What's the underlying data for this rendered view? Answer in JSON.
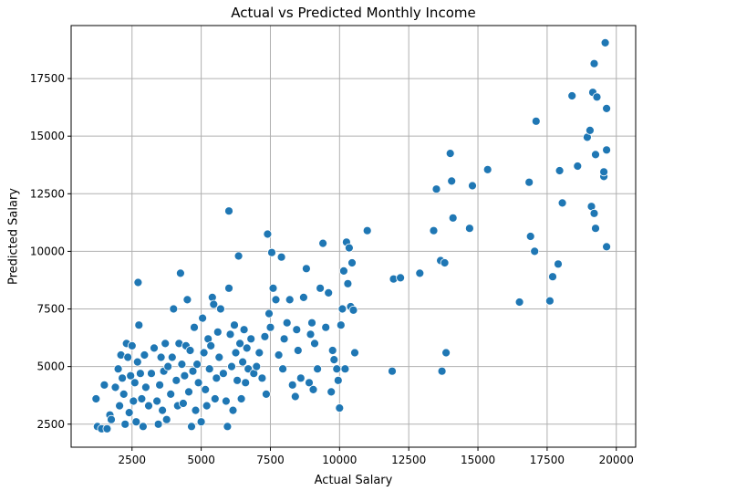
{
  "chart_data": {
    "type": "scatter",
    "title": "Actual vs Predicted Monthly Income",
    "xlabel": "Actual Salary",
    "ylabel": "Predicted Salary",
    "xlim": [
      300,
      20700
    ],
    "ylim": [
      1500,
      19800
    ],
    "xticks": [
      2500,
      5000,
      7500,
      10000,
      12500,
      15000,
      17500,
      20000
    ],
    "yticks": [
      2500,
      5000,
      7500,
      10000,
      12500,
      15000,
      17500
    ],
    "xtick_labels": [
      "2500",
      "5000",
      "7500",
      "10000",
      "12500",
      "15000",
      "17500",
      "20000"
    ],
    "ytick_labels": [
      "2500",
      "5000",
      "7500",
      "10000",
      "12500",
      "15000",
      "17500"
    ],
    "grid": true,
    "marker_color": "#1f77b4",
    "points": [
      [
        1200,
        3600
      ],
      [
        1250,
        2400
      ],
      [
        1400,
        2300
      ],
      [
        1500,
        4200
      ],
      [
        1600,
        2300
      ],
      [
        1700,
        2900
      ],
      [
        1750,
        2700
      ],
      [
        1900,
        4100
      ],
      [
        2000,
        4900
      ],
      [
        2050,
        3300
      ],
      [
        2100,
        5500
      ],
      [
        2150,
        4500
      ],
      [
        2200,
        3800
      ],
      [
        2250,
        2500
      ],
      [
        2300,
        6000
      ],
      [
        2350,
        5400
      ],
      [
        2400,
        3000
      ],
      [
        2450,
        4600
      ],
      [
        2500,
        5900
      ],
      [
        2550,
        3500
      ],
      [
        2600,
        4300
      ],
      [
        2650,
        2600
      ],
      [
        2700,
        5200
      ],
      [
        2720,
        8650
      ],
      [
        2750,
        6800
      ],
      [
        2800,
        4700
      ],
      [
        2850,
        3600
      ],
      [
        2900,
        2400
      ],
      [
        2950,
        5500
      ],
      [
        3000,
        4100
      ],
      [
        3100,
        3300
      ],
      [
        3200,
        4700
      ],
      [
        3300,
        5800
      ],
      [
        3400,
        3500
      ],
      [
        3450,
        2500
      ],
      [
        3500,
        4200
      ],
      [
        3550,
        5400
      ],
      [
        3600,
        3100
      ],
      [
        3650,
        4800
      ],
      [
        3700,
        6000
      ],
      [
        3750,
        2700
      ],
      [
        3800,
        5000
      ],
      [
        3900,
        3800
      ],
      [
        3950,
        5400
      ],
      [
        4000,
        7500
      ],
      [
        4100,
        4400
      ],
      [
        4150,
        3300
      ],
      [
        4200,
        6000
      ],
      [
        4250,
        9050
      ],
      [
        4300,
        5100
      ],
      [
        4350,
        3400
      ],
      [
        4400,
        4600
      ],
      [
        4450,
        5900
      ],
      [
        4500,
        7900
      ],
      [
        4550,
        3900
      ],
      [
        4600,
        5700
      ],
      [
        4650,
        2400
      ],
      [
        4700,
        4800
      ],
      [
        4750,
        6700
      ],
      [
        4800,
        3100
      ],
      [
        4850,
        5100
      ],
      [
        4900,
        4300
      ],
      [
        5000,
        2600
      ],
      [
        5050,
        7100
      ],
      [
        5100,
        5600
      ],
      [
        5150,
        4000
      ],
      [
        5200,
        3300
      ],
      [
        5250,
        6200
      ],
      [
        5300,
        4900
      ],
      [
        5350,
        5900
      ],
      [
        5400,
        8000
      ],
      [
        5450,
        7700
      ],
      [
        5500,
        3600
      ],
      [
        5550,
        4500
      ],
      [
        5600,
        6500
      ],
      [
        5650,
        5400
      ],
      [
        5700,
        7500
      ],
      [
        5800,
        4700
      ],
      [
        5900,
        3500
      ],
      [
        5950,
        2400
      ],
      [
        6000,
        11750
      ],
      [
        6000,
        8400
      ],
      [
        6050,
        6400
      ],
      [
        6100,
        5000
      ],
      [
        6150,
        3100
      ],
      [
        6200,
        6800
      ],
      [
        6250,
        5600
      ],
      [
        6300,
        4400
      ],
      [
        6350,
        9800
      ],
      [
        6400,
        6000
      ],
      [
        6450,
        3600
      ],
      [
        6500,
        5200
      ],
      [
        6550,
        6600
      ],
      [
        6600,
        4300
      ],
      [
        6650,
        5800
      ],
      [
        6700,
        4900
      ],
      [
        6800,
        6200
      ],
      [
        6900,
        4700
      ],
      [
        7000,
        5000
      ],
      [
        7100,
        5600
      ],
      [
        7200,
        4500
      ],
      [
        7300,
        6300
      ],
      [
        7350,
        3800
      ],
      [
        7400,
        10750
      ],
      [
        7450,
        7300
      ],
      [
        7500,
        6700
      ],
      [
        7550,
        9950
      ],
      [
        7600,
        8400
      ],
      [
        7700,
        7900
      ],
      [
        7800,
        5500
      ],
      [
        7900,
        9750
      ],
      [
        7950,
        4900
      ],
      [
        8000,
        6200
      ],
      [
        8100,
        6900
      ],
      [
        8200,
        7900
      ],
      [
        8300,
        4200
      ],
      [
        8400,
        3700
      ],
      [
        8450,
        6600
      ],
      [
        8500,
        5700
      ],
      [
        8600,
        4500
      ],
      [
        8700,
        8000
      ],
      [
        8800,
        9250
      ],
      [
        8900,
        4300
      ],
      [
        8950,
        6400
      ],
      [
        9000,
        6900
      ],
      [
        9050,
        4000
      ],
      [
        9100,
        6000
      ],
      [
        9200,
        4900
      ],
      [
        9300,
        8400
      ],
      [
        9400,
        10350
      ],
      [
        9500,
        6700
      ],
      [
        9600,
        8200
      ],
      [
        9700,
        3900
      ],
      [
        9750,
        5700
      ],
      [
        9800,
        5300
      ],
      [
        9900,
        4900
      ],
      [
        9950,
        4400
      ],
      [
        10000,
        3200
      ],
      [
        10050,
        6800
      ],
      [
        10100,
        7500
      ],
      [
        10150,
        9150
      ],
      [
        10200,
        4900
      ],
      [
        10250,
        10400
      ],
      [
        10300,
        8600
      ],
      [
        10350,
        10150
      ],
      [
        10400,
        7600
      ],
      [
        10450,
        9500
      ],
      [
        10500,
        7450
      ],
      [
        10550,
        5600
      ],
      [
        11000,
        10900
      ],
      [
        11900,
        4800
      ],
      [
        11950,
        8800
      ],
      [
        12200,
        8850
      ],
      [
        12900,
        9050
      ],
      [
        13400,
        10900
      ],
      [
        13500,
        12700
      ],
      [
        13650,
        9600
      ],
      [
        13700,
        4800
      ],
      [
        13800,
        9500
      ],
      [
        13850,
        5600
      ],
      [
        14000,
        14250
      ],
      [
        14050,
        13050
      ],
      [
        14100,
        11450
      ],
      [
        14700,
        11000
      ],
      [
        14800,
        12850
      ],
      [
        15350,
        13550
      ],
      [
        16500,
        7800
      ],
      [
        16850,
        13000
      ],
      [
        16900,
        10650
      ],
      [
        17050,
        10000
      ],
      [
        17100,
        15650
      ],
      [
        17600,
        7850
      ],
      [
        17700,
        8900
      ],
      [
        17900,
        9450
      ],
      [
        17950,
        13500
      ],
      [
        18050,
        12100
      ],
      [
        18400,
        16750
      ],
      [
        18600,
        13700
      ],
      [
        18950,
        14950
      ],
      [
        19050,
        15250
      ],
      [
        19100,
        11950
      ],
      [
        19150,
        16900
      ],
      [
        19200,
        18150
      ],
      [
        19200,
        11650
      ],
      [
        19250,
        14200
      ],
      [
        19250,
        11000
      ],
      [
        19300,
        16700
      ],
      [
        19550,
        13250
      ],
      [
        19550,
        13450
      ],
      [
        19600,
        19050
      ],
      [
        19650,
        16200
      ],
      [
        19650,
        14400
      ],
      [
        19650,
        10200
      ]
    ]
  }
}
